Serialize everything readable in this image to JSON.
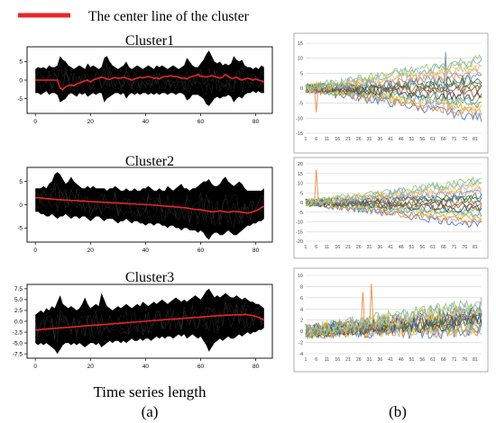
{
  "legend": {
    "label": "The center line of the cluster",
    "color": "#e8262a"
  },
  "figure_labels": {
    "left": "(a)",
    "right": "(b)",
    "xlabel": "Time series length"
  },
  "colors": {
    "cluster_fill": "#000000",
    "center_line": "#e8262a",
    "axis": "#000000",
    "grid": "#cfcfcf"
  },
  "right_palette": [
    "#4472c4",
    "#ed7d31",
    "#a5a5a5",
    "#ffc000",
    "#5b9bd5",
    "#70ad47",
    "#264478",
    "#9e480e",
    "#636363",
    "#997300",
    "#255e91",
    "#43682b",
    "#698ed0",
    "#f1975a",
    "#b7b7b7",
    "#ffcd33",
    "#7cafdd",
    "#8cc168"
  ],
  "chart_data": [
    {
      "type": "line",
      "panel": "a",
      "title": "Cluster1",
      "xticks": [
        "0",
        "20",
        "40",
        "60",
        "80"
      ],
      "yticks": [
        "5",
        "0",
        "-5"
      ],
      "xlim": [
        -3,
        86
      ],
      "ylim": [
        -9,
        9
      ],
      "center_line": [
        0,
        0,
        0,
        0,
        0,
        0,
        0,
        0,
        0,
        -2.2,
        -2.5,
        -1.8,
        -1.5,
        -1.3,
        -1.5,
        -1.0,
        -0.8,
        -0.5,
        -0.2,
        0,
        -0.5,
        0,
        0.3,
        0.5,
        0.8,
        0.6,
        0.3,
        0.2,
        0.5,
        0.7,
        0.5,
        0.5,
        0.8,
        0.5,
        0.3,
        0,
        0.3,
        0.5,
        0.8,
        0.6,
        0.8,
        1.0,
        0.8,
        0.5,
        0.6,
        0.3,
        0.8,
        1.0,
        1.0,
        1.2,
        1.0,
        1.0,
        0.8,
        0.5,
        0.6,
        0.3,
        0.8,
        1.0,
        1.2,
        1.5,
        1.0,
        1.0,
        0.8,
        1.0,
        1.2,
        1.0,
        0.8,
        0.5,
        0.8,
        1.5,
        1.0,
        0.5,
        0.5,
        0.8,
        0.3,
        0,
        0.3,
        0.5,
        0.3,
        0,
        0.3,
        0,
        -0.2,
        -0.5
      ],
      "band_upper": [
        3.0,
        3.5,
        3.2,
        3.5,
        3.0,
        4.0,
        3.5,
        3.5,
        4.0,
        6.5,
        5.5,
        5.0,
        4.0,
        3.5,
        3.0,
        3.5,
        4.0,
        3.5,
        3.0,
        4.5,
        3.5,
        4.0,
        3.5,
        3.0,
        3.5,
        6.0,
        6.5,
        5.0,
        4.0,
        3.5,
        3.0,
        3.5,
        4.0,
        5.0,
        3.5,
        3.0,
        3.5,
        4.0,
        3.5,
        3.0,
        3.5,
        4.0,
        3.5,
        3.0,
        4.0,
        3.5,
        4.0,
        3.5,
        3.0,
        3.5,
        4.0,
        3.5,
        3.0,
        3.5,
        4.0,
        6.0,
        5.0,
        4.0,
        3.5,
        3.5,
        4.5,
        5.5,
        7.0,
        8.0,
        6.5,
        5.0,
        4.5,
        5.0,
        4.0,
        4.5,
        4.0,
        4.5,
        6.5,
        5.5,
        5.0,
        5.5,
        4.0,
        3.5,
        3.5,
        3.0,
        3.5,
        3.0,
        4.0,
        3.5
      ],
      "band_lower": [
        -3.5,
        -3.5,
        -4.0,
        -3.5,
        -3.0,
        -4.0,
        -3.5,
        -3.5,
        -4.0,
        -6.0,
        -5.5,
        -5.0,
        -4.0,
        -3.5,
        -4.0,
        -4.5,
        -3.5,
        -4.0,
        -3.5,
        -4.5,
        -4.0,
        -3.5,
        -4.0,
        -3.5,
        -3.5,
        -6.0,
        -5.0,
        -4.5,
        -4.0,
        -3.5,
        -3.5,
        -4.0,
        -3.5,
        -5.0,
        -4.0,
        -3.5,
        -4.0,
        -3.5,
        -4.0,
        -3.5,
        -3.5,
        -4.0,
        -3.5,
        -4.0,
        -3.5,
        -4.0,
        -3.5,
        -3.5,
        -4.0,
        -3.5,
        -3.5,
        -4.0,
        -3.5,
        -3.5,
        -4.0,
        -5.5,
        -5.0,
        -4.0,
        -4.0,
        -4.0,
        -4.5,
        -5.0,
        -6.5,
        -7.0,
        -6.0,
        -5.0,
        -4.5,
        -5.0,
        -4.5,
        -4.5,
        -4.0,
        -4.5,
        -6.0,
        -5.0,
        -4.5,
        -5.0,
        -4.0,
        -3.5,
        -3.5,
        -3.0,
        -3.5,
        -3.0,
        -3.5,
        -3.5
      ]
    },
    {
      "type": "line",
      "panel": "a",
      "title": "Cluster2",
      "xticks": [
        "0",
        "20",
        "40",
        "60",
        "80"
      ],
      "yticks": [
        "5",
        "0",
        "-5"
      ],
      "xlim": [
        -3,
        86
      ],
      "ylim": [
        -8,
        8
      ],
      "center_line": [
        1.5,
        1.5,
        1.4,
        1.4,
        1.3,
        1.3,
        1.2,
        1.2,
        1.1,
        1.1,
        1.0,
        1.0,
        1.0,
        0.9,
        0.9,
        0.9,
        0.8,
        0.8,
        0.8,
        0.7,
        0.7,
        0.7,
        0.6,
        0.6,
        0.6,
        0.5,
        0.5,
        0.5,
        0.4,
        0.4,
        0.4,
        0.3,
        0.3,
        0.3,
        0.2,
        0.2,
        0.2,
        0.1,
        0.1,
        0.1,
        0,
        0,
        0,
        -0.1,
        -0.1,
        -0.2,
        -0.2,
        -0.3,
        -0.3,
        -0.4,
        -0.4,
        -0.5,
        -0.5,
        -0.6,
        -0.6,
        -0.7,
        -0.8,
        -0.9,
        -1.0,
        -1.0,
        -1.1,
        -1.2,
        -1.3,
        -1.4,
        -1.5,
        -1.5,
        -1.4,
        -1.3,
        -1.4,
        -1.5,
        -1.6,
        -1.5,
        -1.4,
        -1.5,
        -1.5,
        -1.6,
        -1.7,
        -1.8,
        -1.7,
        -1.5,
        -1.3,
        -1.0,
        -0.6,
        -0.3
      ],
      "band_upper": [
        3.5,
        3.5,
        3.5,
        4.0,
        3.5,
        4.5,
        5.0,
        6.5,
        7.0,
        6.5,
        5.5,
        4.5,
        5.0,
        6.0,
        5.0,
        4.5,
        4.0,
        3.5,
        3.5,
        4.0,
        3.5,
        4.0,
        3.5,
        3.5,
        3.5,
        3.5,
        3.0,
        3.5,
        3.5,
        4.0,
        3.5,
        3.0,
        3.0,
        3.5,
        3.0,
        3.0,
        3.5,
        3.0,
        3.0,
        3.5,
        3.5,
        4.0,
        3.5,
        3.0,
        3.0,
        3.5,
        3.0,
        3.0,
        4.0,
        3.5,
        3.0,
        3.5,
        4.0,
        4.5,
        3.5,
        3.5,
        3.0,
        3.5,
        3.5,
        4.0,
        4.5,
        5.0,
        5.0,
        5.5,
        4.5,
        4.0,
        4.0,
        4.5,
        5.5,
        6.0,
        5.0,
        4.5,
        4.0,
        4.5,
        5.0,
        4.5,
        3.5,
        3.0,
        3.0,
        3.0,
        3.0,
        3.0,
        3.0,
        3.5
      ],
      "band_lower": [
        -1.5,
        -1.5,
        -2.0,
        -2.0,
        -2.5,
        -2.5,
        -2.0,
        -2.5,
        -3.0,
        -2.5,
        -2.5,
        -2.0,
        -2.5,
        -3.0,
        -2.5,
        -2.5,
        -3.0,
        -2.5,
        -2.5,
        -3.0,
        -3.5,
        -3.0,
        -2.5,
        -2.5,
        -3.0,
        -3.5,
        -3.0,
        -3.0,
        -3.0,
        -3.5,
        -4.0,
        -3.5,
        -3.5,
        -3.0,
        -3.5,
        -4.0,
        -3.5,
        -3.5,
        -4.0,
        -4.0,
        -4.5,
        -4.0,
        -4.0,
        -4.5,
        -4.0,
        -4.0,
        -4.5,
        -4.5,
        -5.0,
        -4.5,
        -4.5,
        -5.0,
        -5.0,
        -5.5,
        -5.0,
        -5.0,
        -5.5,
        -5.5,
        -5.5,
        -6.0,
        -5.5,
        -6.0,
        -7.0,
        -7.5,
        -6.5,
        -6.0,
        -6.0,
        -6.5,
        -6.5,
        -6.0,
        -5.5,
        -6.0,
        -6.5,
        -6.5,
        -6.0,
        -5.5,
        -5.0,
        -4.5,
        -4.5,
        -4.0,
        -4.0,
        -3.5,
        -3.5,
        -3.0
      ]
    },
    {
      "type": "line",
      "panel": "a",
      "title": "Cluster3",
      "xticks": [
        "0",
        "20",
        "40",
        "60",
        "80"
      ],
      "yticks": [
        "7.5",
        "5.0",
        "2.5",
        "0.0",
        "-2.5",
        "-5.0",
        "-7.5"
      ],
      "xlim": [
        -3,
        86
      ],
      "ylim": [
        -8.5,
        8.5
      ],
      "center_line": [
        -2.0,
        -2.0,
        -1.9,
        -1.8,
        -1.8,
        -1.7,
        -1.7,
        -1.6,
        -1.6,
        -1.5,
        -1.5,
        -1.4,
        -1.4,
        -1.3,
        -1.3,
        -1.2,
        -1.2,
        -1.1,
        -1.1,
        -1.0,
        -1.0,
        -0.9,
        -0.9,
        -0.8,
        -0.8,
        -0.7,
        -0.7,
        -0.6,
        -0.6,
        -0.5,
        -0.5,
        -0.4,
        -0.4,
        -0.3,
        -0.3,
        -0.2,
        -0.2,
        -0.1,
        -0.1,
        0,
        0,
        0.1,
        0.1,
        0.2,
        0.2,
        0.3,
        0.3,
        0.4,
        0.4,
        0.5,
        0.5,
        0.5,
        0.6,
        0.6,
        0.7,
        0.7,
        0.8,
        0.8,
        0.9,
        0.9,
        1.0,
        1.0,
        1.1,
        1.1,
        1.2,
        1.2,
        1.3,
        1.3,
        1.3,
        1.4,
        1.4,
        1.4,
        1.5,
        1.5,
        1.5,
        1.5,
        1.6,
        1.5,
        1.4,
        1.3,
        1.1,
        0.9,
        0.6,
        0.3
      ],
      "band_upper": [
        1.5,
        2.0,
        2.5,
        2.0,
        3.0,
        2.5,
        3.5,
        3.0,
        4.5,
        6.0,
        4.0,
        3.5,
        3.0,
        3.5,
        3.0,
        2.5,
        3.0,
        4.0,
        5.5,
        4.0,
        3.0,
        3.5,
        4.0,
        3.5,
        6.5,
        5.0,
        3.5,
        3.0,
        2.5,
        3.0,
        3.5,
        3.0,
        3.5,
        4.0,
        3.5,
        3.0,
        3.5,
        4.0,
        3.5,
        4.5,
        4.0,
        3.5,
        4.0,
        4.5,
        4.0,
        4.5,
        5.0,
        4.5,
        4.0,
        4.5,
        5.0,
        5.5,
        5.0,
        4.5,
        5.0,
        4.5,
        5.0,
        5.5,
        6.0,
        5.5,
        5.0,
        6.0,
        7.0,
        7.5,
        6.5,
        5.5,
        6.0,
        5.5,
        6.0,
        6.5,
        6.0,
        5.5,
        5.5,
        6.0,
        5.5,
        5.0,
        5.5,
        5.0,
        4.5,
        4.5,
        4.0,
        4.0,
        3.5,
        3.0
      ],
      "band_lower": [
        -5.0,
        -5.5,
        -5.0,
        -5.5,
        -5.0,
        -5.5,
        -6.0,
        -6.5,
        -7.5,
        -6.5,
        -5.5,
        -5.0,
        -5.0,
        -5.5,
        -5.0,
        -5.5,
        -5.0,
        -5.5,
        -6.0,
        -5.5,
        -5.0,
        -5.0,
        -5.5,
        -5.0,
        -6.0,
        -5.5,
        -5.0,
        -4.5,
        -5.0,
        -4.5,
        -4.5,
        -5.0,
        -4.5,
        -5.0,
        -4.5,
        -4.0,
        -4.5,
        -4.5,
        -4.0,
        -4.5,
        -4.0,
        -4.0,
        -4.5,
        -4.0,
        -3.5,
        -4.0,
        -3.5,
        -4.0,
        -3.5,
        -3.5,
        -4.0,
        -3.5,
        -3.0,
        -3.5,
        -3.0,
        -4.0,
        -3.5,
        -3.0,
        -3.5,
        -4.0,
        -3.5,
        -4.5,
        -5.5,
        -7.0,
        -6.0,
        -5.0,
        -4.5,
        -4.0,
        -4.5,
        -4.0,
        -3.5,
        -4.0,
        -4.0,
        -3.5,
        -3.0,
        -3.5,
        -3.0,
        -2.5,
        -3.0,
        -2.5,
        -2.5,
        -2.0,
        -2.0,
        -1.5
      ]
    },
    {
      "type": "line",
      "panel": "b",
      "xticks": [
        "1",
        "6",
        "11",
        "16",
        "21",
        "26",
        "31",
        "36",
        "41",
        "46",
        "51",
        "56",
        "61",
        "66",
        "71",
        "76",
        "81"
      ],
      "yticks": [
        "15",
        "10",
        "5",
        "0",
        "-5",
        "-10",
        "-15"
      ],
      "ylim": [
        -15,
        15
      ],
      "n_points": 84
    },
    {
      "type": "line",
      "panel": "b",
      "xticks": [
        "1",
        "6",
        "11",
        "16",
        "21",
        "26",
        "31",
        "36",
        "41",
        "46",
        "51",
        "56",
        "61",
        "66",
        "71",
        "76",
        "81"
      ],
      "yticks": [
        "20",
        "15",
        "10",
        "5",
        "0",
        "-5",
        "-10",
        "-15",
        "-20"
      ],
      "ylim": [
        -20,
        20
      ],
      "n_points": 84
    },
    {
      "type": "line",
      "panel": "b",
      "xticks": [
        "1",
        "6",
        "11",
        "16",
        "21",
        "26",
        "31",
        "36",
        "41",
        "46",
        "51",
        "56",
        "61",
        "66",
        "71",
        "76",
        "81"
      ],
      "yticks": [
        "10",
        "8",
        "6",
        "4",
        "2",
        "0",
        "-2",
        "-4"
      ],
      "ylim": [
        -4,
        10
      ],
      "n_points": 84
    }
  ]
}
